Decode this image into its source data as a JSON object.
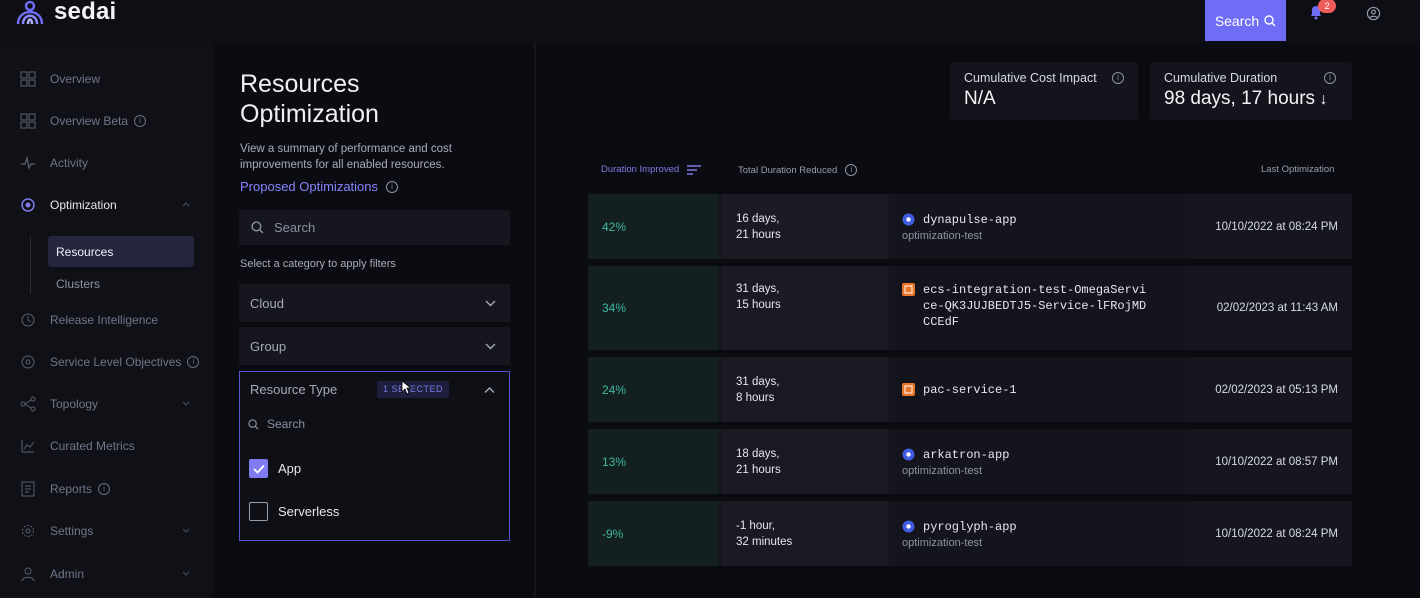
{
  "brand": {
    "name": "sedai",
    "accent": "#6f6cf5"
  },
  "header": {
    "search_label": "Search",
    "notification_count": "2"
  },
  "sidebar": {
    "items": [
      {
        "label": "Overview"
      },
      {
        "label": "Overview Beta"
      },
      {
        "label": "Activity"
      },
      {
        "label": "Optimization"
      },
      {
        "label": "Release Intelligence"
      },
      {
        "label": "Service Level Objectives"
      },
      {
        "label": "Topology"
      },
      {
        "label": "Curated Metrics"
      },
      {
        "label": "Reports"
      },
      {
        "label": "Settings"
      },
      {
        "label": "Admin"
      }
    ],
    "sub_items": [
      {
        "label": "Resources"
      },
      {
        "label": "Clusters"
      }
    ]
  },
  "page": {
    "title": "Resources Optimization",
    "description": "View a summary of performance and cost improvements for all enabled resources.",
    "proposed_link": "Proposed Optimizations"
  },
  "filters": {
    "search_placeholder": "Search",
    "hint": "Select a category to apply filters",
    "cloud_label": "Cloud",
    "group_label": "Group",
    "resource_type": {
      "label": "Resource Type",
      "badge": "1 SELECTED",
      "search_placeholder": "Search",
      "options": [
        {
          "label": "App",
          "checked": true
        },
        {
          "label": "Serverless",
          "checked": false
        }
      ]
    }
  },
  "stats": {
    "cost": {
      "label": "Cumulative Cost Impact",
      "value": "N/A"
    },
    "duration": {
      "label": "Cumulative Duration",
      "value": "98 days, 17 hours"
    }
  },
  "table": {
    "headers": {
      "improved": "Duration Improved",
      "reduced": "Total Duration Reduced",
      "last": "Last Optimization"
    },
    "rows": [
      {
        "pct": "42%",
        "dur1": "16 days,",
        "dur2": "21 hours",
        "name": "dynapulse-app",
        "sub": "optimization-test",
        "icon": "app-icon",
        "date": "10/10/2022 at 08:24 PM"
      },
      {
        "pct": "34%",
        "dur1": "31 days,",
        "dur2": "15 hours",
        "name": "ecs-integration-test-OmegaService-QK3JUJBEDTJ5-Service-lFRojMDCCEdF",
        "sub": "",
        "icon": "ecs-icon",
        "date": "02/02/2023 at 11:43 AM"
      },
      {
        "pct": "24%",
        "dur1": "31 days,",
        "dur2": "8 hours",
        "name": "pac-service-1",
        "sub": "",
        "icon": "ecs-icon",
        "date": "02/02/2023 at 05:13 PM"
      },
      {
        "pct": "13%",
        "dur1": "18 days,",
        "dur2": "21 hours",
        "name": "arkatron-app",
        "sub": "optimization-test",
        "icon": "app-icon",
        "date": "10/10/2022 at 08:57 PM"
      },
      {
        "pct": "-9%",
        "dur1": "-1 hour,",
        "dur2": "32 minutes",
        "name": "pyroglyph-app",
        "sub": "optimization-test",
        "icon": "app-icon",
        "date": "10/10/2022 at 08:24 PM"
      }
    ]
  }
}
